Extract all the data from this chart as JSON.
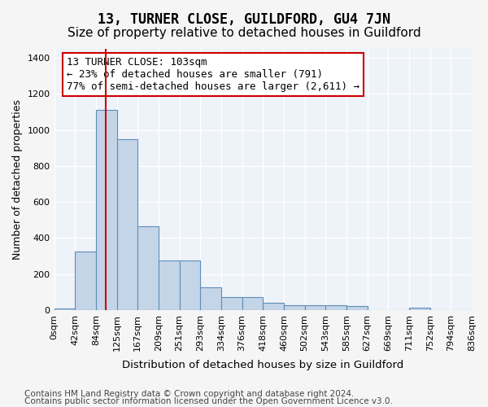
{
  "title": "13, TURNER CLOSE, GUILDFORD, GU4 7JN",
  "subtitle": "Size of property relative to detached houses in Guildford",
  "xlabel": "Distribution of detached houses by size in Guildford",
  "ylabel": "Number of detached properties",
  "bar_labels": [
    "0sqm",
    "42sqm",
    "84sqm",
    "125sqm",
    "167sqm",
    "209sqm",
    "251sqm",
    "293sqm",
    "334sqm",
    "376sqm",
    "418sqm",
    "460sqm",
    "502sqm",
    "543sqm",
    "585sqm",
    "627sqm",
    "669sqm",
    "711sqm",
    "752sqm",
    "794sqm",
    "836sqm"
  ],
  "bar_values": [
    10,
    325,
    1110,
    950,
    465,
    275,
    275,
    125,
    70,
    70,
    40,
    25,
    25,
    25,
    20,
    0,
    0,
    15,
    0,
    0
  ],
  "bar_color": "#c5d5e8",
  "bar_edge_color": "#5b8db8",
  "vline_color": "#cc0000",
  "annotation_text": "13 TURNER CLOSE: 103sqm\n← 23% of detached houses are smaller (791)\n77% of semi-detached houses are larger (2,611) →",
  "annotation_box_color": "#ffffff",
  "annotation_box_edge": "#cc0000",
  "ylim": [
    0,
    1450
  ],
  "yticks": [
    0,
    200,
    400,
    600,
    800,
    1000,
    1200,
    1400
  ],
  "background_color": "#eef2f9",
  "grid_color": "#ffffff",
  "footer_line1": "Contains HM Land Registry data © Crown copyright and database right 2024.",
  "footer_line2": "Contains public sector information licensed under the Open Government Licence v3.0.",
  "title_fontsize": 12,
  "subtitle_fontsize": 11,
  "axis_label_fontsize": 9,
  "tick_fontsize": 8,
  "annotation_fontsize": 9,
  "footer_fontsize": 7.5
}
